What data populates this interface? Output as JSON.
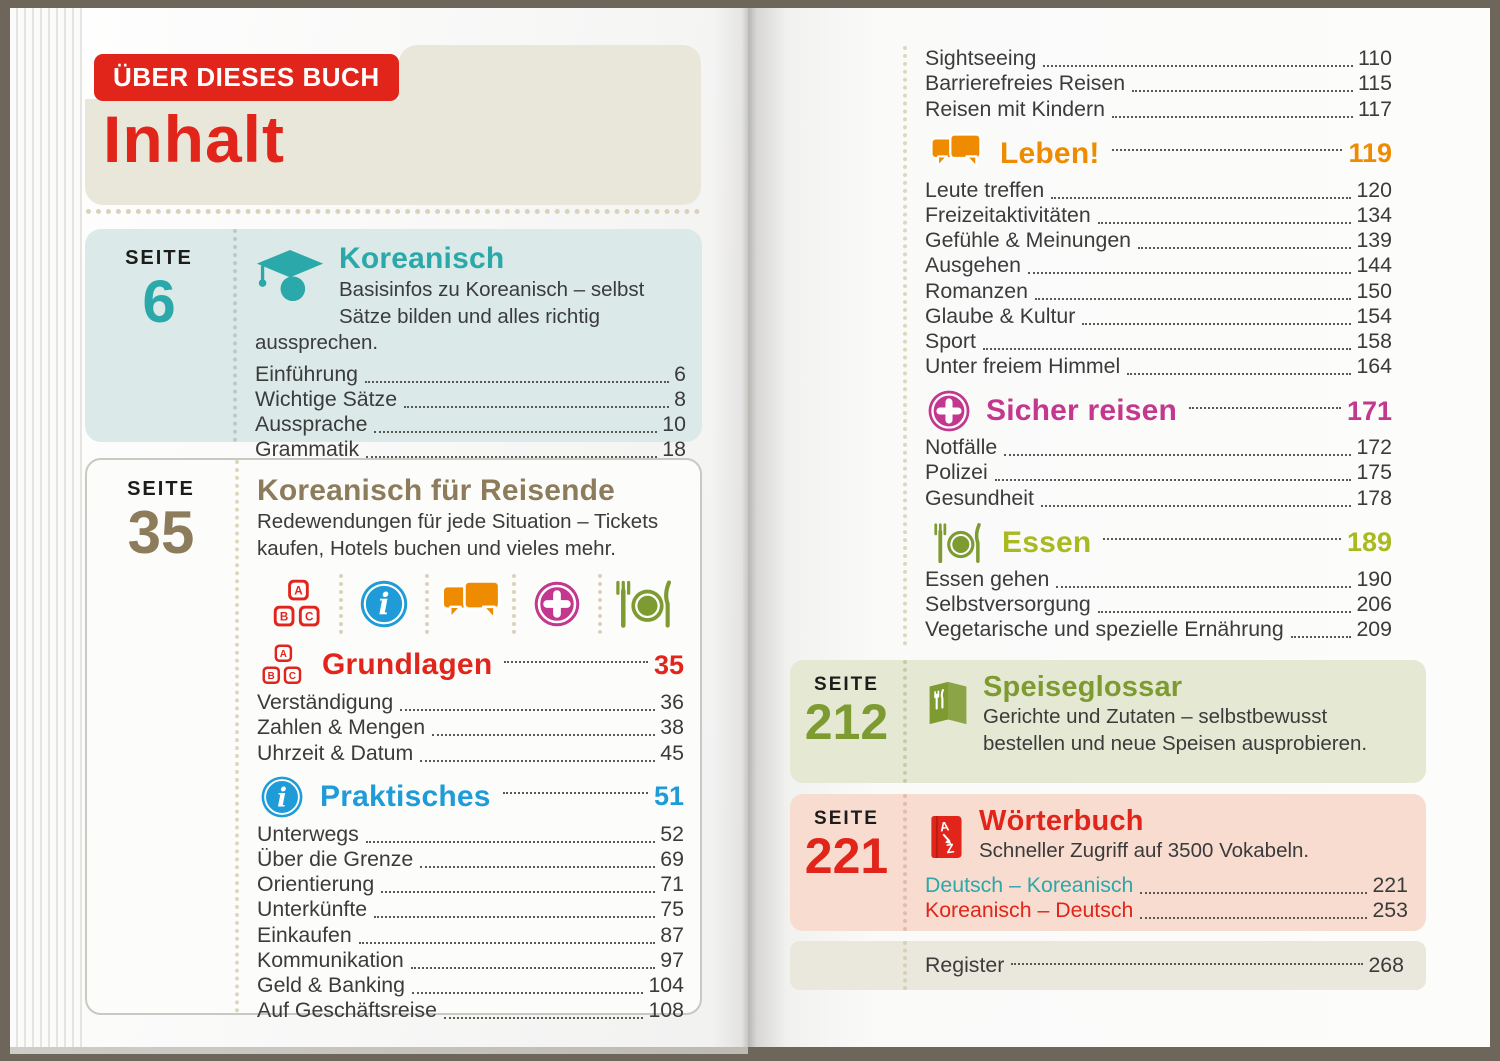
{
  "colors": {
    "red": "#e1251b",
    "teal": "#2ba8a9",
    "brown": "#8d7c5b",
    "blue": "#1f9cd8",
    "orange": "#ee8b00",
    "magenta": "#c3378f",
    "lime": "#a8ba1e",
    "olive": "#7e9b32",
    "text": "#3b3b3b"
  },
  "left_page": {
    "badge": "ÜBER DIESES BUCH",
    "title": "Inhalt",
    "koreanisch": {
      "seite_label": "SEITE",
      "seite_number": "6",
      "title": "Koreanisch",
      "icon": "grad-cap-icon",
      "description": "Basisinfos zu Koreanisch – selbst Sätze bilden und alles richtig aussprechen.",
      "entries": [
        {
          "label": "Einführung",
          "page": "6"
        },
        {
          "label": "Wichtige Sätze",
          "page": "8"
        },
        {
          "label": "Aussprache",
          "page": "10"
        },
        {
          "label": "Grammatik",
          "page": "18"
        }
      ]
    },
    "reisende": {
      "seite_label": "SEITE",
      "seite_number": "35",
      "title": "Koreanisch für Reisende",
      "description": "Redewendungen für jede Situation – Tickets kaufen, Hotels buchen und vieles mehr.",
      "icon_row": [
        "abc-blocks-icon",
        "info-icon",
        "speech-bubbles-icon",
        "plus-icon",
        "food-icon"
      ],
      "subsections": [
        {
          "title": "Grundlagen",
          "page": "35",
          "color": "#e1251b",
          "icon": "abc-blocks-icon",
          "entries": [
            {
              "label": "Verständigung",
              "page": "36"
            },
            {
              "label": "Zahlen & Mengen",
              "page": "38"
            },
            {
              "label": "Uhrzeit & Datum",
              "page": "45"
            }
          ]
        },
        {
          "title": "Praktisches",
          "page": "51",
          "color": "#1f9cd8",
          "icon": "info-icon",
          "entries": [
            {
              "label": "Unterwegs",
              "page": "52"
            },
            {
              "label": "Über die Grenze",
              "page": "69"
            },
            {
              "label": "Orientierung",
              "page": "71"
            },
            {
              "label": "Unterkünfte",
              "page": "75"
            },
            {
              "label": "Einkaufen",
              "page": "87"
            },
            {
              "label": "Kommunikation",
              "page": "97"
            },
            {
              "label": "Geld & Banking",
              "page": "104"
            },
            {
              "label": "Auf Geschäftsreise",
              "page": "108"
            }
          ]
        }
      ]
    }
  },
  "right_page": {
    "top_entries": [
      {
        "label": "Sightseeing",
        "page": "110"
      },
      {
        "label": "Barrierefreies Reisen",
        "page": "115"
      },
      {
        "label": "Reisen mit Kindern",
        "page": "117"
      }
    ],
    "sections": [
      {
        "title": "Leben!",
        "page": "119",
        "color": "#ee8b00",
        "icon": "speech-bubbles-icon",
        "entries": [
          {
            "label": "Leute treffen",
            "page": "120"
          },
          {
            "label": "Freizeitaktivitäten",
            "page": "134"
          },
          {
            "label": "Gefühle & Meinungen",
            "page": "139"
          },
          {
            "label": "Ausgehen",
            "page": "144"
          },
          {
            "label": "Romanzen",
            "page": "150"
          },
          {
            "label": "Glaube & Kultur",
            "page": "154"
          },
          {
            "label": "Sport",
            "page": "158"
          },
          {
            "label": "Unter freiem Himmel",
            "page": "164"
          }
        ]
      },
      {
        "title": "Sicher reisen",
        "page": "171",
        "color": "#c3378f",
        "icon": "plus-icon",
        "entries": [
          {
            "label": "Notfälle",
            "page": "172"
          },
          {
            "label": "Polizei",
            "page": "175"
          },
          {
            "label": "Gesundheit",
            "page": "178"
          }
        ]
      },
      {
        "title": "Essen",
        "page": "189",
        "color": "#a8ba1e",
        "icon": "food-icon",
        "entries": [
          {
            "label": "Essen gehen",
            "page": "190"
          },
          {
            "label": "Selbstversorgung",
            "page": "206"
          },
          {
            "label": "Vegetarische und spezielle Ernährung",
            "page": "209"
          }
        ]
      }
    ],
    "speiseglossar": {
      "seite_label": "SEITE",
      "seite_number": "212",
      "title": "Speiseglossar",
      "icon": "menu-icon",
      "description": "Gerichte und Zutaten – selbstbewusst bestellen und neue Speisen ausprobieren."
    },
    "woerterbuch": {
      "seite_label": "SEITE",
      "seite_number": "221",
      "title": "Wörterbuch",
      "icon": "dictionary-icon",
      "description": "Schneller Zugriff auf 3500 Vokabeln.",
      "entries": [
        {
          "label": "Deutsch – Koreanisch",
          "page": "221",
          "label_color": "#2ba8a9"
        },
        {
          "label": "Koreanisch – Deutsch",
          "page": "253",
          "label_color": "#e1251b"
        }
      ]
    },
    "register": {
      "label": "Register",
      "page": "268"
    }
  }
}
